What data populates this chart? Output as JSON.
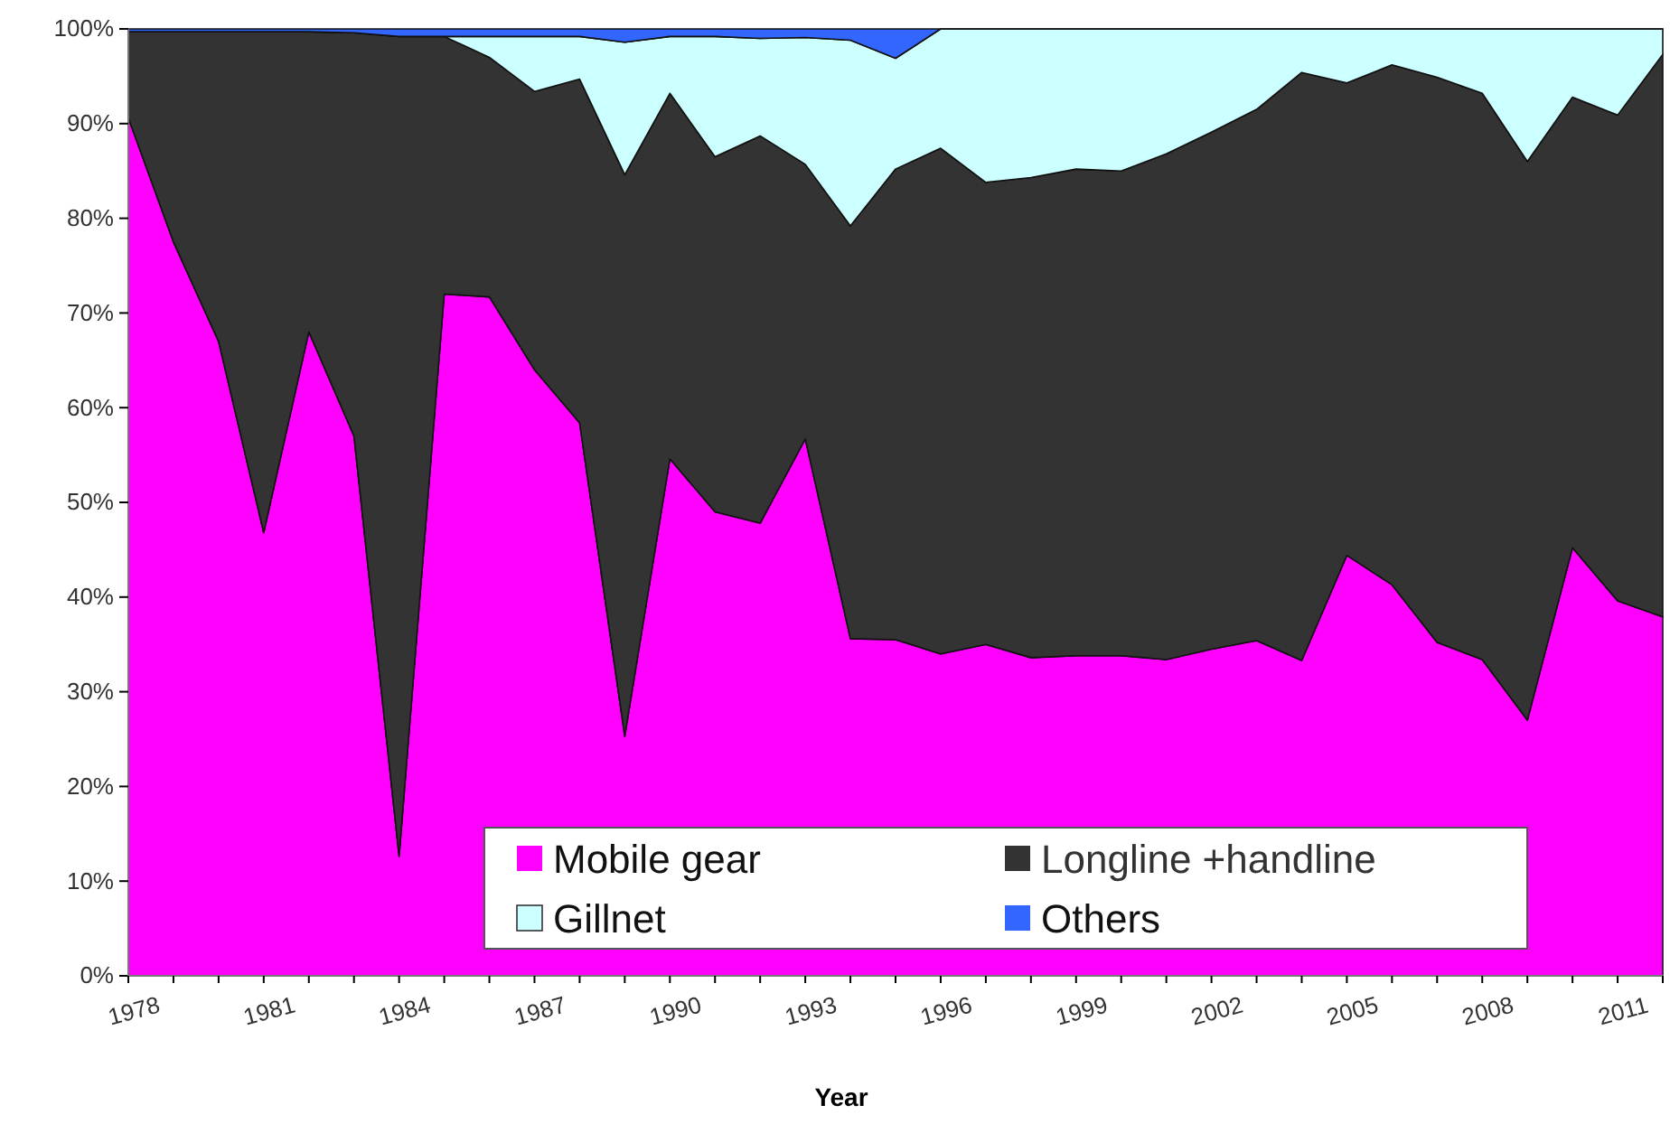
{
  "chart_data": {
    "type": "area",
    "stacked": true,
    "xlabel": "Year",
    "x": [
      1978,
      1979,
      1980,
      1981,
      1982,
      1983,
      1984,
      1985,
      1986,
      1987,
      1988,
      1989,
      1990,
      1991,
      1992,
      1993,
      1994,
      1995,
      1996,
      1997,
      1998,
      1999,
      2000,
      2001,
      2002,
      2003,
      2004,
      2005,
      2006,
      2007,
      2008,
      2009,
      2010,
      2011,
      2012
    ],
    "series": [
      {
        "name": "Mobile gear",
        "color": "#ff00ff",
        "values": [
          90.6,
          77.5,
          67,
          46.8,
          68,
          57,
          12.6,
          72,
          71.7,
          64,
          58.4,
          25.3,
          54.6,
          49,
          47.8,
          56.7,
          35.6,
          35.5,
          34,
          35,
          33.6,
          33.8,
          33.8,
          33.4,
          34.5,
          35.4,
          33.3,
          44.4,
          41.3,
          35.2,
          33.4,
          27,
          45.2,
          39.6,
          37.9
        ]
      },
      {
        "name": "Longline +handline",
        "color": "#333333",
        "values": [
          9.1,
          22.2,
          32.7,
          52.9,
          31.7,
          42.6,
          86.6,
          27.2,
          25.3,
          29.4,
          36.3,
          59.3,
          38.6,
          37.5,
          40.9,
          29,
          43.6,
          49.7,
          53.4,
          48.8,
          50.7,
          51.4,
          51.2,
          53.4,
          54.6,
          56.1,
          62.1,
          49.9,
          54.9,
          59.7,
          59.8,
          59,
          47.6,
          51.3,
          59.4
        ]
      },
      {
        "name": "Gillnet",
        "color": "#ccffff",
        "values": [
          0,
          0,
          0,
          0,
          0,
          0,
          0,
          0,
          2.2,
          5.8,
          4.5,
          14,
          6,
          12.7,
          10.3,
          13.4,
          19.6,
          11.7,
          12.6,
          16.2,
          15.7,
          14.8,
          15,
          13.2,
          10.9,
          8.5,
          4.6,
          5.7,
          3.8,
          5.1,
          6.8,
          14,
          7.2,
          9.1,
          2.7
        ]
      },
      {
        "name": "Others",
        "color": "#3366ff",
        "values": [
          0.3,
          0.3,
          0.3,
          0.3,
          0.3,
          0.4,
          0.8,
          0.8,
          0.8,
          0.8,
          0.8,
          1.4,
          0.8,
          0.8,
          1,
          0.9,
          1.2,
          3.1,
          0,
          0,
          0,
          0,
          0,
          0,
          0,
          0,
          0,
          0,
          0,
          0,
          0,
          0,
          0,
          0,
          0
        ]
      }
    ],
    "xlim": [
      1978,
      2012
    ],
    "xticks": [
      1978,
      {
        "value": 1979,
        "label": null
      },
      {
        "value": 1980,
        "label": null
      },
      1981,
      {
        "value": 1982,
        "label": null
      },
      {
        "value": 1983,
        "label": null
      },
      1984,
      {
        "value": 1985,
        "label": null
      },
      {
        "value": 1986,
        "label": null
      },
      1987,
      {
        "value": 1988,
        "label": null
      },
      {
        "value": 1989,
        "label": null
      },
      1990,
      {
        "value": 1991,
        "label": null
      },
      {
        "value": 1992,
        "label": null
      },
      1993,
      {
        "value": 1994,
        "label": null
      },
      {
        "value": 1995,
        "label": null
      },
      1996,
      {
        "value": 1997,
        "label": null
      },
      {
        "value": 1998,
        "label": null
      },
      1999,
      {
        "value": 2000,
        "label": null
      },
      {
        "value": 2001,
        "label": null
      },
      2002,
      {
        "value": 2003,
        "label": null
      },
      {
        "value": 2004,
        "label": null
      },
      2005,
      {
        "value": 2006,
        "label": null
      },
      {
        "value": 2007,
        "label": null
      },
      2008,
      {
        "value": 2009,
        "label": null
      },
      {
        "value": 2010,
        "label": null
      },
      2011,
      {
        "value": 2012,
        "label": null
      }
    ],
    "ylim": [
      0,
      100
    ],
    "yticks": [
      {
        "value": 0,
        "label": "0%"
      },
      {
        "value": 10,
        "label": "10%"
      },
      {
        "value": 20,
        "label": "20%"
      },
      {
        "value": 30,
        "label": "30%"
      },
      {
        "value": 40,
        "label": "40%"
      },
      {
        "value": 50,
        "label": "50%"
      },
      {
        "value": 60,
        "label": "60%"
      },
      {
        "value": 70,
        "label": "70%"
      },
      {
        "value": 80,
        "label": "80%"
      },
      {
        "value": 90,
        "label": "90%"
      },
      {
        "value": 100,
        "label": "100%"
      }
    ],
    "grid": false,
    "legend": "bottom"
  }
}
